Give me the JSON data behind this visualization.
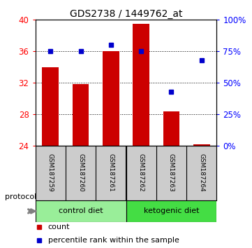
{
  "title": "GDS2738 / 1449762_at",
  "categories": [
    "GSM187259",
    "GSM187260",
    "GSM187261",
    "GSM187262",
    "GSM187263",
    "GSM187264"
  ],
  "bar_values": [
    34.0,
    31.8,
    36.0,
    39.5,
    28.3,
    24.1
  ],
  "percentile_values": [
    75,
    75,
    80,
    75,
    43,
    68
  ],
  "bar_color": "#cc0000",
  "dot_color": "#0000cc",
  "ylim_left": [
    24,
    40
  ],
  "ylim_right": [
    0,
    100
  ],
  "yticks_left": [
    24,
    28,
    32,
    36,
    40
  ],
  "yticks_right": [
    0,
    25,
    50,
    75,
    100
  ],
  "ytick_labels_right": [
    "0%",
    "25%",
    "50%",
    "75%",
    "100%"
  ],
  "bar_bottom": 24,
  "groups": [
    {
      "label": "control diet",
      "indices": [
        0,
        1,
        2
      ],
      "color": "#99ee99"
    },
    {
      "label": "ketogenic diet",
      "indices": [
        3,
        4,
        5
      ],
      "color": "#44dd44"
    }
  ],
  "protocol_label": "protocol",
  "legend_items": [
    {
      "color": "#cc0000",
      "label": "count"
    },
    {
      "color": "#0000cc",
      "label": "percentile rank within the sample"
    }
  ],
  "background_color": "#ffffff",
  "plot_bg": "#ffffff",
  "label_area_bg": "#cccccc",
  "title_fontsize": 10,
  "tick_fontsize": 8.5
}
